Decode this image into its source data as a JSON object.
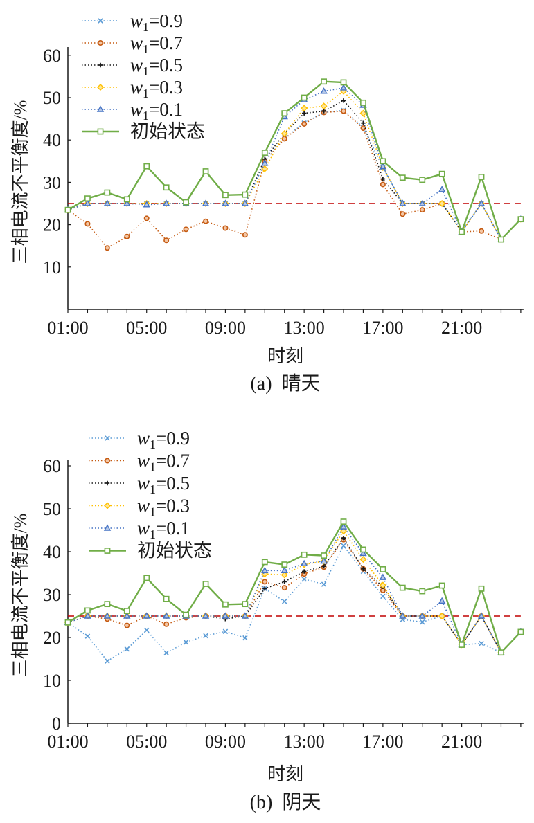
{
  "chart_data": [
    {
      "type": "line",
      "caption": "(a)  晴天",
      "xlabel": "时刻",
      "ylabel": "三相电流不平衡度/%",
      "ylim": [
        0,
        60
      ],
      "y_ticks": [
        "10",
        "20",
        "30",
        "40",
        "50",
        "60"
      ],
      "x_ticks": [
        "01:00",
        "05:00",
        "09:00",
        "13:00",
        "17:00",
        "21:00"
      ],
      "x": [
        1,
        2,
        3,
        4,
        5,
        6,
        7,
        8,
        9,
        10,
        11,
        12,
        13,
        14,
        15,
        16,
        17,
        18,
        19,
        20,
        21,
        22,
        23,
        24
      ],
      "threshold": 25,
      "legend_placement": "top-left",
      "series": [
        {
          "name": "w1=0.9",
          "var": "w",
          "sub": "1",
          "val": "=0.9",
          "color": "#5b9bd5",
          "marker": "x",
          "style": "dotted",
          "values": [
            23.5,
            25,
            25,
            25,
            25,
            25,
            25,
            25,
            25,
            25,
            35,
            40.5,
            44,
            46.5,
            47,
            43,
            33.5,
            25,
            25,
            25,
            18.5,
            25,
            16.5,
            21.3
          ]
        },
        {
          "name": "w1=0.7",
          "var": "w",
          "sub": "1",
          "val": "=0.7",
          "color": "#c55a11",
          "marker": "circle",
          "style": "dotted",
          "values": [
            23.5,
            20.2,
            14.5,
            17.2,
            21.5,
            16.3,
            18.9,
            20.8,
            19.2,
            17.6,
            35,
            40.3,
            43.8,
            46.5,
            46.8,
            42.8,
            29.5,
            22.5,
            23.5,
            25,
            18.3,
            18.5,
            16.5,
            21.3
          ]
        },
        {
          "name": "w1=0.5",
          "var": "w",
          "sub": "1",
          "val": "=0.5",
          "color": "#1a1a1a",
          "marker": "plus",
          "style": "dotted",
          "values": [
            23.5,
            25,
            25,
            25,
            25,
            25,
            25,
            25,
            25,
            25,
            35.5,
            41.5,
            46.3,
            46.8,
            49.3,
            44,
            30.8,
            25,
            25,
            25,
            18.3,
            25,
            16.5,
            21.3
          ]
        },
        {
          "name": "w1=0.3",
          "var": "w",
          "sub": "1",
          "val": "=0.3",
          "color": "#ffc000",
          "marker": "diamond",
          "style": "dotted",
          "values": [
            23.5,
            25,
            25,
            25,
            25,
            25,
            25,
            25,
            25,
            25,
            33.2,
            41.5,
            47.5,
            48,
            51.5,
            46.3,
            33.5,
            25,
            25,
            25,
            18.3,
            25,
            16.5,
            21.3
          ]
        },
        {
          "name": "w1=0.1",
          "var": "w",
          "sub": "1",
          "val": "=0.1",
          "color": "#4472c4",
          "marker": "triangle",
          "style": "dotted",
          "values": [
            23.5,
            25,
            25,
            25,
            24.7,
            25,
            25,
            25,
            25,
            25,
            34.5,
            45.5,
            49.5,
            51.5,
            52.3,
            48.2,
            33.7,
            25,
            25,
            28.3,
            18.3,
            25,
            16.5,
            21.3
          ]
        },
        {
          "name": "初始状态",
          "var": "",
          "sub": "",
          "val": "初始状态",
          "color": "#70ad47",
          "marker": "square",
          "style": "solid",
          "values": [
            23.5,
            26.2,
            27.6,
            26,
            33.8,
            28.8,
            25.3,
            32.6,
            27,
            27.1,
            37,
            46.3,
            50,
            53.8,
            53.6,
            48.8,
            35,
            31.1,
            30.6,
            32,
            18.3,
            31.3,
            16.5,
            21.3
          ]
        }
      ]
    },
    {
      "type": "line",
      "caption": "(b)  阴天",
      "xlabel": "时刻",
      "ylabel": "三相电流不平衡度/%",
      "ylim": [
        0,
        60
      ],
      "y_ticks": [
        "0",
        "10",
        "20",
        "30",
        "40",
        "50",
        "60"
      ],
      "x_ticks": [
        "01:00",
        "05:00",
        "09:00",
        "13:00",
        "17:00",
        "21:00"
      ],
      "x": [
        1,
        2,
        3,
        4,
        5,
        6,
        7,
        8,
        9,
        10,
        11,
        12,
        13,
        14,
        15,
        16,
        17,
        18,
        19,
        20,
        21,
        22,
        23,
        24
      ],
      "threshold": 25,
      "legend_placement": "top-left",
      "series": [
        {
          "name": "w1=0.9",
          "var": "w",
          "sub": "1",
          "val": "=0.9",
          "color": "#5b9bd5",
          "marker": "x",
          "style": "dotted",
          "values": [
            23.5,
            20.3,
            14.5,
            17.3,
            21.7,
            16.4,
            18.9,
            20.4,
            21.4,
            19.9,
            31.4,
            28.4,
            33.6,
            32.4,
            41.4,
            35.4,
            29.6,
            24.2,
            23.6,
            25,
            18.3,
            18.6,
            16.5,
            21.3
          ]
        },
        {
          "name": "w1=0.7",
          "var": "w",
          "sub": "1",
          "val": "=0.7",
          "color": "#c55a11",
          "marker": "circle",
          "style": "dotted",
          "values": [
            23.5,
            25,
            24.3,
            22.8,
            25,
            23.1,
            24.6,
            25,
            25,
            25,
            33,
            31.6,
            34.8,
            36.4,
            42.8,
            36,
            31,
            25,
            25,
            25,
            18.3,
            25,
            16.5,
            21.3
          ]
        },
        {
          "name": "w1=0.5",
          "var": "w",
          "sub": "1",
          "val": "=0.5",
          "color": "#1a1a1a",
          "marker": "plus",
          "style": "dotted",
          "values": [
            23.5,
            25,
            25,
            25,
            25,
            25,
            25,
            25,
            24.3,
            25,
            31.4,
            33,
            35.4,
            36.6,
            43.2,
            36,
            31.8,
            25,
            25,
            25,
            18.3,
            25,
            16.5,
            21.3
          ]
        },
        {
          "name": "w1=0.3",
          "var": "w",
          "sub": "1",
          "val": "=0.3",
          "color": "#ffc000",
          "marker": "diamond",
          "style": "dotted",
          "values": [
            23.5,
            25,
            25,
            25,
            25,
            25,
            25,
            25,
            25,
            25,
            34.8,
            34.6,
            37,
            37.8,
            44.8,
            38.2,
            32.2,
            25,
            25,
            25,
            18.3,
            25,
            16.5,
            21.3
          ]
        },
        {
          "name": "w1=0.1",
          "var": "w",
          "sub": "1",
          "val": "=0.1",
          "color": "#4472c4",
          "marker": "triangle",
          "style": "dotted",
          "values": [
            23.5,
            25,
            25,
            25,
            25,
            25,
            25,
            25,
            25,
            25,
            35.6,
            35.6,
            37.2,
            37.8,
            45.8,
            39.6,
            34,
            25,
            25,
            28.5,
            18.3,
            25,
            16.5,
            21.3
          ]
        },
        {
          "name": "初始状态",
          "var": "",
          "sub": "",
          "val": "初始状态",
          "color": "#70ad47",
          "marker": "square",
          "style": "solid",
          "values": [
            23.5,
            26.3,
            27.8,
            26.2,
            33.9,
            29,
            25.3,
            32.5,
            27.7,
            27.8,
            37.6,
            37,
            39.3,
            39.1,
            47,
            40.5,
            35.9,
            31.6,
            30.8,
            32.1,
            18.3,
            31.4,
            16.5,
            21.3
          ]
        }
      ]
    }
  ]
}
